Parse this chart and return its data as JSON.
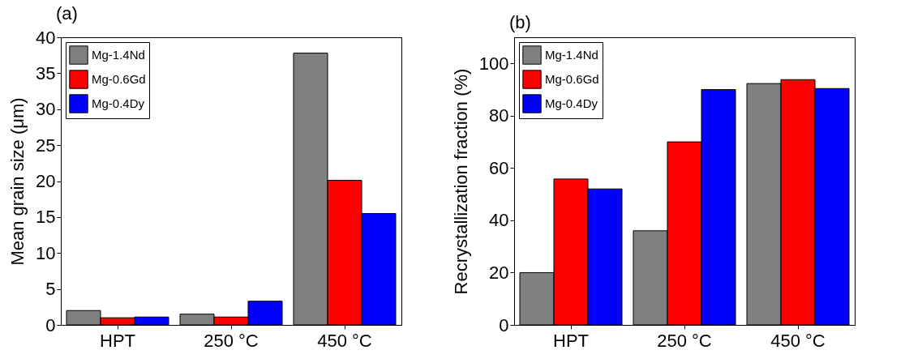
{
  "chart_data": [
    {
      "type": "bar",
      "title": "(a)",
      "ylabel": "Mean grain size (μm)",
      "categories": [
        "HPT",
        "250 °C",
        "450 °C"
      ],
      "series": [
        {
          "name": "Mg-1.4Nd",
          "color": "#808080",
          "values": [
            2.0,
            1.5,
            37.8
          ]
        },
        {
          "name": "Mg-0.6Gd",
          "color": "#ff0000",
          "values": [
            1.0,
            1.1,
            20.1
          ]
        },
        {
          "name": "Mg-0.4Dy",
          "color": "#0000ff",
          "values": [
            1.1,
            3.3,
            15.5
          ]
        }
      ],
      "ylim": [
        0,
        40
      ],
      "yticks": [
        0,
        5,
        10,
        15,
        20,
        25,
        30,
        35,
        40
      ],
      "legend": "top left",
      "grid": false
    },
    {
      "type": "bar",
      "title": "(b)",
      "ylabel": "Recrystallization fraction (%)",
      "categories": [
        "HPT",
        "250 °C",
        "450 °C"
      ],
      "series": [
        {
          "name": "Mg-1.4Nd",
          "color": "#808080",
          "values": [
            20,
            36,
            92.3
          ]
        },
        {
          "name": "Mg-0.6Gd",
          "color": "#ff0000",
          "values": [
            55.8,
            70,
            93.8
          ]
        },
        {
          "name": "Mg-0.4Dy",
          "color": "#0000ff",
          "values": [
            52,
            90,
            90.4
          ]
        }
      ],
      "ylim": [
        0,
        110
      ],
      "yticks": [
        0,
        20,
        40,
        60,
        80,
        100
      ],
      "legend": "top left",
      "grid": false
    }
  ]
}
